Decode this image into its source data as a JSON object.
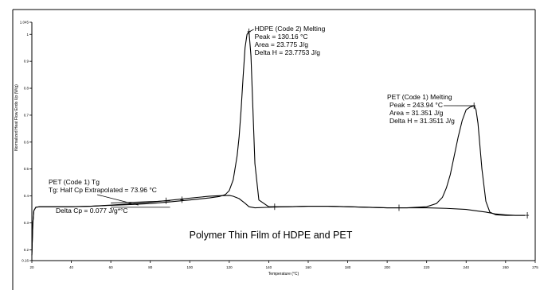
{
  "chart_data": {
    "type": "line",
    "title": "Polymer Thin Film of HDPE and PET",
    "xlabel": "Temperature (°C)",
    "ylabel": "Normalized Heat Flow Endo Up (W/g)",
    "xlim": [
      20,
      275
    ],
    "ylim": [
      0.16,
      1.045
    ],
    "x_ticks": [
      20,
      40,
      60,
      80,
      100,
      120,
      140,
      160,
      180,
      200,
      220,
      240,
      260,
      275
    ],
    "y_ticks": [
      0.16,
      0.2,
      0.3,
      0.4,
      0.5,
      0.6,
      0.7,
      0.8,
      0.9,
      1.0,
      1.045
    ],
    "grid": false,
    "series": [
      {
        "name": "",
        "x": [
          20,
          20.5,
          21,
          22,
          24,
          30,
          40,
          50,
          60,
          70,
          80,
          90,
          100,
          110,
          115,
          118,
          120,
          122,
          124,
          125,
          126,
          127,
          128,
          129,
          130,
          131,
          132,
          133,
          135,
          140,
          150,
          160,
          170,
          180,
          200,
          210,
          220,
          225,
          228,
          230,
          232,
          234,
          236,
          238,
          240,
          242,
          244,
          245,
          246,
          248,
          250,
          252,
          255,
          260,
          265,
          270
        ],
        "y": [
          0.18,
          0.3,
          0.345,
          0.358,
          0.36,
          0.36,
          0.36,
          0.362,
          0.365,
          0.368,
          0.372,
          0.378,
          0.385,
          0.393,
          0.398,
          0.405,
          0.42,
          0.46,
          0.55,
          0.62,
          0.72,
          0.84,
          0.95,
          1.0,
          1.01,
          0.92,
          0.72,
          0.52,
          0.385,
          0.36,
          0.36,
          0.362,
          0.362,
          0.36,
          0.356,
          0.356,
          0.36,
          0.372,
          0.395,
          0.43,
          0.48,
          0.55,
          0.62,
          0.68,
          0.72,
          0.73,
          0.735,
          0.72,
          0.67,
          0.5,
          0.38,
          0.34,
          0.33,
          0.328,
          0.328,
          0.328
        ]
      },
      {
        "name": "",
        "x": [
          20,
          20.5,
          21,
          22,
          24,
          30,
          40,
          50,
          60,
          70,
          80,
          90,
          100,
          110,
          115,
          120,
          122,
          125,
          128,
          130,
          133,
          140,
          150,
          160,
          170,
          180,
          200,
          210,
          220,
          230,
          240,
          245,
          250,
          255,
          260,
          265,
          270
        ],
        "y": [
          0.18,
          0.3,
          0.345,
          0.358,
          0.36,
          0.36,
          0.36,
          0.362,
          0.366,
          0.371,
          0.377,
          0.384,
          0.392,
          0.399,
          0.401,
          0.402,
          0.399,
          0.39,
          0.373,
          0.36,
          0.356,
          0.358,
          0.36,
          0.362,
          0.362,
          0.36,
          0.356,
          0.356,
          0.356,
          0.354,
          0.35,
          0.345,
          0.34,
          0.333,
          0.33,
          0.328,
          0.328
        ]
      }
    ],
    "tangent_lines": [
      {
        "x": [
          60,
          90
        ],
        "y": [
          0.358,
          0.358
        ]
      },
      {
        "x": [
          60,
          90
        ],
        "y": [
          0.374,
          0.382
        ]
      }
    ],
    "markers": [
      {
        "x": 88,
        "y": 0.382
      },
      {
        "x": 96,
        "y": 0.386
      },
      {
        "x": 130,
        "y": 1.01
      },
      {
        "x": 143,
        "y": 0.36
      },
      {
        "x": 206,
        "y": 0.356
      },
      {
        "x": 244,
        "y": 0.735
      },
      {
        "x": 271,
        "y": 0.328
      }
    ],
    "annotations": [
      {
        "id": "hdpe",
        "lines": [
          "HDPE (Code 2) Melting",
          "Peak = 130.16 °C",
          "Area = 23.775 J/g",
          "Delta H = 23.7753 J/g"
        ]
      },
      {
        "id": "pet_melt",
        "lines": [
          "PET (Code 1) Melting",
          "Peak = 243.94 °C",
          "Area = 31.351 J/g",
          "Delta H = 31.3511 J/g"
        ]
      },
      {
        "id": "pet_tg",
        "lines": [
          "PET (Code 1) Tg",
          "Tg: Half Cp Extrapolated = 73.96 °C"
        ]
      },
      {
        "id": "delta_cp",
        "lines": [
          "Delta Cp = 0.077 J/g*°C"
        ]
      }
    ]
  }
}
